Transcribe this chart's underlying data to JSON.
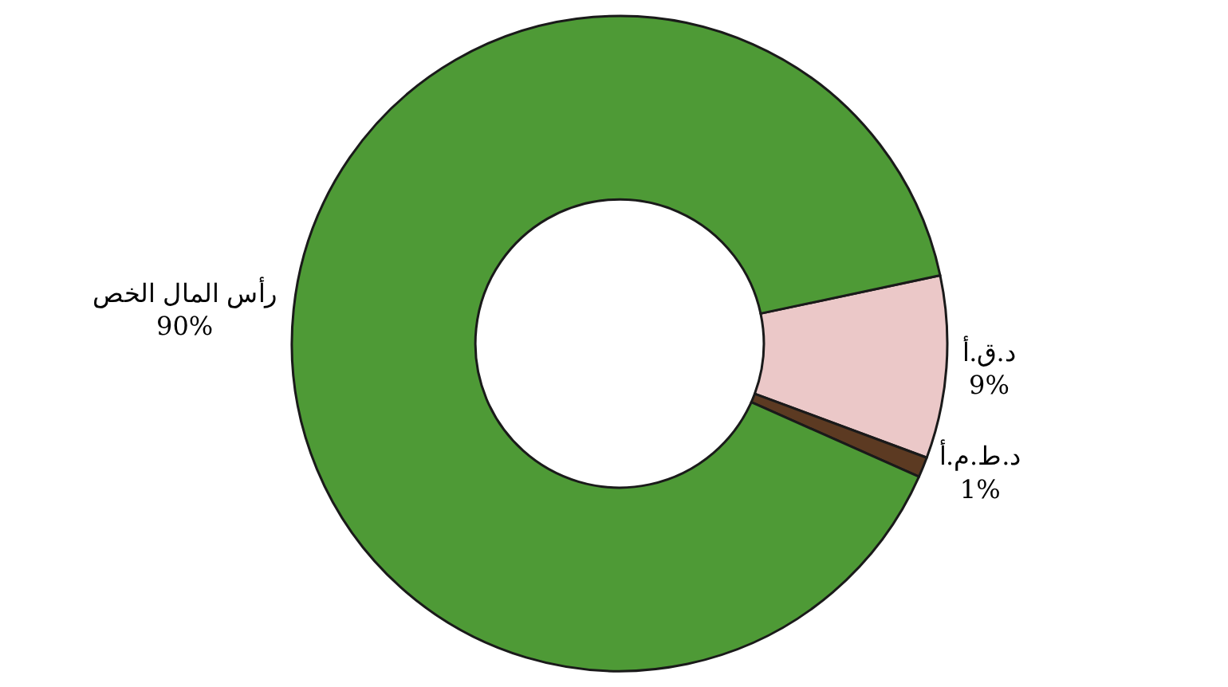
{
  "chart_data": {
    "type": "donut",
    "categories": [
      "د.ق.أ",
      "د.ط.م.أ",
      "رأس المال الخص"
    ],
    "values": [
      9,
      1,
      90
    ],
    "value_labels": [
      "9%",
      "1%",
      "90%"
    ],
    "colors": [
      "#ebc8c8",
      "#5c3a22",
      "#4e9a36"
    ],
    "legend": false
  }
}
